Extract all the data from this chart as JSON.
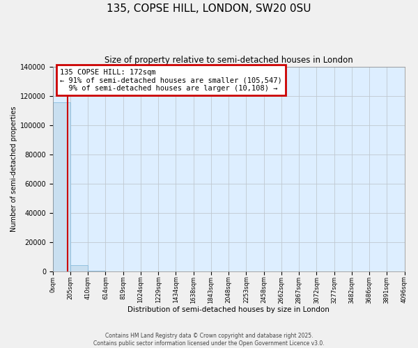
{
  "title": "135, COPSE HILL, LONDON, SW20 0SU",
  "subtitle": "Size of property relative to semi-detached houses in London",
  "xlabel": "Distribution of semi-detached houses by size in London",
  "ylabel": "Number of semi-detached properties",
  "property_size": 172,
  "property_label": "135 COPSE HILL: 172sqm",
  "pct_smaller": 91,
  "pct_larger": 9,
  "n_smaller": 105547,
  "n_larger": 10108,
  "bar_edges": [
    0,
    205,
    410,
    614,
    819,
    1024,
    1229,
    1434,
    1638,
    1843,
    2048,
    2253,
    2458,
    2662,
    2867,
    3072,
    3277,
    3482,
    3686,
    3891,
    4096
  ],
  "bar_heights": [
    115655,
    4500,
    600,
    150,
    70,
    35,
    22,
    14,
    9,
    6,
    4,
    3,
    2,
    2,
    1,
    1,
    1,
    1,
    1,
    1
  ],
  "bar_color": "#c9dff0",
  "bar_edge_color": "#7ab3d8",
  "vline_color": "#cc0000",
  "vline_x": 172,
  "ylim": [
    0,
    140000
  ],
  "yticks": [
    0,
    20000,
    40000,
    60000,
    80000,
    100000,
    120000,
    140000
  ],
  "annotation_box_color": "#cc0000",
  "footer_line1": "Contains HM Land Registry data © Crown copyright and database right 2025.",
  "footer_line2": "Contains public sector information licensed under the Open Government Licence v3.0.",
  "fig_bg_color": "#f0f0f0",
  "plot_bg_color": "#ddeeff"
}
